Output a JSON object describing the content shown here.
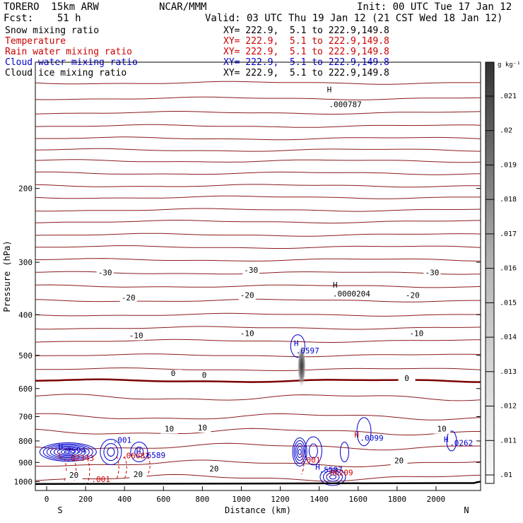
{
  "header": {
    "model": "TORERO  15km ARW",
    "org": "NCAR/MMM",
    "init": "Init: 00 UTC Tue 17 Jan 12",
    "fcst": "Fcst:    51 h",
    "valid": "Valid: 03 UTC Thu 19 Jan 12 (21 CST Wed 18 Jan 12)"
  },
  "legend": [
    {
      "label": "Snow mixing ratio",
      "xy": "XY= 222.9,  5.1 to 222.9,149.8",
      "color": "#000000"
    },
    {
      "label": "Temperature",
      "xy": "XY= 222.9,  5.1 to 222.9,149.8",
      "color": "#cc0000"
    },
    {
      "label": "Rain water mixing ratio",
      "xy": "XY= 222.9,  5.1 to 222.9,149.8",
      "color": "#cc0000"
    },
    {
      "label": "Cloud water mixing ratio",
      "xy": "XY= 222.9,  5.1 to 222.9,149.8",
      "color": "#0000cc"
    },
    {
      "label": "Cloud ice mixing ratio",
      "xy": "XY= 222.9,  5.1 to 222.9,149.8",
      "color": "#000000"
    }
  ],
  "chart_data": {
    "type": "contour cross-section",
    "xlabel": "Distance (km)",
    "ylabel": "Pressure (hPa)",
    "xlim": [
      0,
      2200
    ],
    "ylim_hpa": [
      100,
      1050
    ],
    "x_ticks": [
      0,
      200,
      400,
      600,
      800,
      1000,
      1200,
      1400,
      1600,
      1800,
      2000
    ],
    "y_ticks": [
      200,
      300,
      400,
      500,
      600,
      700,
      800,
      900,
      1000
    ],
    "y_scale": "log",
    "endpoints": {
      "left": "S",
      "right": "N"
    },
    "colorbar": {
      "unit": "g kg⁻¹",
      "labels": [
        ".021",
        ".02",
        ".019",
        ".018",
        ".017",
        ".016",
        ".015",
        ".014",
        ".013",
        ".012",
        ".011",
        ".01"
      ]
    },
    "temperature_labels": [
      {
        "text": "-30",
        "x_km": 300,
        "p": 322
      },
      {
        "text": "-30",
        "x_km": 1050,
        "p": 318
      },
      {
        "text": "-30",
        "x_km": 1980,
        "p": 322
      },
      {
        "text": "-20",
        "x_km": 420,
        "p": 370
      },
      {
        "text": "-20",
        "x_km": 1030,
        "p": 365
      },
      {
        "text": "-20",
        "x_km": 1880,
        "p": 365
      },
      {
        "text": "-10",
        "x_km": 460,
        "p": 455
      },
      {
        "text": "-10",
        "x_km": 1030,
        "p": 450
      },
      {
        "text": "-10",
        "x_km": 1900,
        "p": 450
      },
      {
        "text": "0",
        "x_km": 650,
        "p": 560
      },
      {
        "text": "0",
        "x_km": 810,
        "p": 565
      },
      {
        "text": "0",
        "x_km": 1850,
        "p": 575
      },
      {
        "text": "10",
        "x_km": 630,
        "p": 760
      },
      {
        "text": "10",
        "x_km": 800,
        "p": 755
      },
      {
        "text": "10",
        "x_km": 2030,
        "p": 760
      },
      {
        "text": "20",
        "x_km": 1810,
        "p": 905
      },
      {
        "text": "20",
        "x_km": 860,
        "p": 945
      },
      {
        "text": "20",
        "x_km": 470,
        "p": 975
      },
      {
        "text": "20",
        "x_km": 140,
        "p": 980
      }
    ],
    "extrema_labels": [
      {
        "text": "H",
        "x_km": 1440,
        "p": 118,
        "color": "#000000"
      },
      {
        "text": ".000787",
        "x_km": 1450,
        "p": 128,
        "color": "#000000"
      },
      {
        "text": "H",
        "x_km": 1470,
        "p": 345,
        "color": "#000000"
      },
      {
        "text": ".0000204",
        "x_km": 1470,
        "p": 362,
        "color": "#000000"
      },
      {
        "text": "H",
        "x_km": 1270,
        "p": 475,
        "color": "#0000cc"
      },
      {
        "text": ".0597",
        "x_km": 1280,
        "p": 495,
        "color": "#0000cc"
      },
      {
        "text": "H",
        "x_km": 60,
        "p": 838,
        "color": "#0000cc"
      },
      {
        "text": ".7594",
        "x_km": 80,
        "p": 855,
        "color": "#0000cc"
      },
      {
        "text": ".001",
        "x_km": 340,
        "p": 808,
        "color": "#0000cc"
      },
      {
        "text": "L",
        "x_km": 60,
        "p": 880,
        "color": "#cc0000"
      },
      {
        "text": ".02343",
        "x_km": 100,
        "p": 892,
        "color": "#cc0000"
      },
      {
        "text": ".06682",
        "x_km": 385,
        "p": 880,
        "color": "#cc0000"
      },
      {
        "text": "H",
        "x_km": 460,
        "p": 860,
        "color": "#0000cc"
      },
      {
        "text": ".6589",
        "x_km": 490,
        "p": 878,
        "color": "#0000cc"
      },
      {
        "text": ".001",
        "x_km": 230,
        "p": 1003,
        "color": "#cc0000"
      },
      {
        "text": ".001",
        "x_km": 1310,
        "p": 900,
        "color": "#cc0000"
      },
      {
        "text": "H",
        "x_km": 1380,
        "p": 937,
        "color": "#0000cc"
      },
      {
        "text": ".5507",
        "x_km": 1400,
        "p": 951,
        "color": "#0000cc"
      },
      {
        "text": ".00209",
        "x_km": 1430,
        "p": 966,
        "color": "#cc0000"
      },
      {
        "text": "H",
        "x_km": 1580,
        "p": 785,
        "color": "#cc0000"
      },
      {
        "text": ".0099",
        "x_km": 1610,
        "p": 798,
        "color": "#0000cc"
      },
      {
        "text": "H",
        "x_km": 2040,
        "p": 805,
        "color": "#0000cc"
      },
      {
        "text": ".0262",
        "x_km": 2070,
        "p": 820,
        "color": "#0000cc"
      }
    ]
  }
}
